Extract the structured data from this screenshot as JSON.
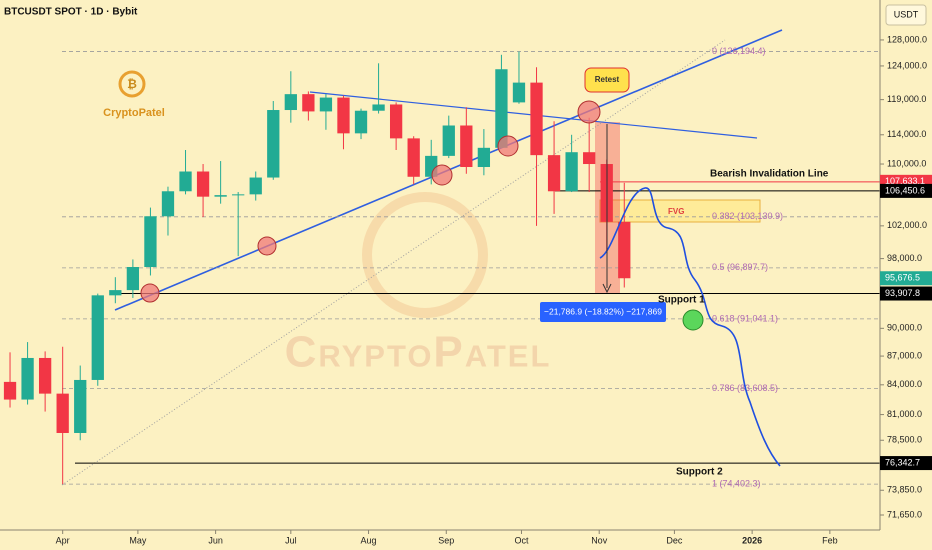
{
  "chart_data": {
    "type": "candlestick",
    "title": "BTCUSDT SPOT · 1D · Bybit",
    "currency": "USDT",
    "log_scale": true,
    "up_color": "#22ab94",
    "down_color": "#f23645",
    "xlim": [
      -25,
      326
    ],
    "xticks": [
      {
        "value": 0,
        "label": "Apr"
      },
      {
        "value": 30,
        "label": "May"
      },
      {
        "value": 61,
        "label": "Jun"
      },
      {
        "value": 91,
        "label": "Jul"
      },
      {
        "value": 122,
        "label": "Aug"
      },
      {
        "value": 153,
        "label": "Sep"
      },
      {
        "value": 183,
        "label": "Oct"
      },
      {
        "value": 214,
        "label": "Nov"
      },
      {
        "value": 244,
        "label": "Dec"
      },
      {
        "value": 275,
        "label": "2026"
      },
      {
        "value": 306,
        "label": "Feb"
      }
    ],
    "ylim": [
      70350,
      134400
    ],
    "yticks": [
      {
        "value": 128000,
        "label": "128,000.0"
      },
      {
        "value": 124000,
        "label": "124,000.0"
      },
      {
        "value": 119000,
        "label": "119,000.0"
      },
      {
        "value": 114000,
        "label": "114,000.0"
      },
      {
        "value": 110000,
        "label": "110,000.0"
      },
      {
        "value": 102000,
        "label": "102,000.0"
      },
      {
        "value": 98000,
        "label": "98,000.0"
      },
      {
        "value": 90000,
        "label": "90,000.0"
      },
      {
        "value": 87000,
        "label": "87,000.0"
      },
      {
        "value": 84000,
        "label": "84,000.0"
      },
      {
        "value": 81000,
        "label": "81,000.0"
      },
      {
        "value": 78500,
        "label": "78,500.0"
      },
      {
        "value": 73850,
        "label": "73,850.0"
      },
      {
        "value": 71650,
        "label": "71,650.0"
      }
    ],
    "x": [
      -21,
      -14,
      -7,
      0,
      7,
      14,
      21,
      28,
      35,
      42,
      49,
      56,
      63,
      70,
      77,
      84,
      91,
      98,
      105,
      112,
      119,
      126,
      133,
      140,
      147,
      154,
      161,
      168,
      175,
      182,
      189,
      196,
      203,
      210,
      217,
      224
    ],
    "open": [
      84300,
      82500,
      86800,
      83100,
      79200,
      84500,
      93700,
      94300,
      97000,
      103200,
      106400,
      109000,
      105700,
      105900,
      106000,
      108200,
      117500,
      119800,
      117300,
      119300,
      114200,
      117400,
      118300,
      113500,
      108300,
      111100,
      115300,
      109600,
      112200,
      118600,
      121500,
      111200,
      106400,
      111600,
      110000,
      102500
    ],
    "high": [
      87400,
      88500,
      87500,
      88000,
      86000,
      93900,
      95800,
      97900,
      104300,
      107000,
      111900,
      110000,
      110400,
      106300,
      109000,
      118800,
      123200,
      120200,
      119800,
      119600,
      117700,
      124400,
      118600,
      113800,
      113300,
      116700,
      117900,
      114800,
      125700,
      126200,
      123800,
      115900,
      114000,
      116400,
      110600,
      107500
    ],
    "low": [
      81700,
      82000,
      81300,
      74400,
      78500,
      83900,
      92800,
      93400,
      96000,
      100800,
      106000,
      103100,
      104800,
      98300,
      105200,
      107900,
      115700,
      116000,
      114700,
      112000,
      113400,
      117000,
      111900,
      107300,
      107300,
      110800,
      108700,
      108500,
      112100,
      118400,
      102000,
      103500,
      106300,
      106300,
      98900,
      94600
    ],
    "close": [
      82500,
      86800,
      83100,
      79200,
      84500,
      93700,
      94300,
      97000,
      103200,
      106400,
      109000,
      105700,
      105900,
      106000,
      108200,
      117500,
      119800,
      117300,
      119300,
      114200,
      117400,
      118300,
      113500,
      108300,
      111100,
      115300,
      109600,
      112200,
      123500,
      121500,
      111200,
      106400,
      111600,
      110000,
      102500,
      95676.5
    ],
    "fib_levels": [
      {
        "value": 126194.4,
        "label": "0 (126,194.4)"
      },
      {
        "value": 103130.9,
        "label": "0.382 (103,130.9)"
      },
      {
        "value": 96897.7,
        "label": "0.5 (96,897.7)"
      },
      {
        "value": 91041.1,
        "label": "0.618 (91,041.1)"
      },
      {
        "value": 83608.5,
        "label": "0.786 (83,608.5)"
      },
      {
        "value": 74402.3,
        "label": "1 (74,402.3)"
      }
    ],
    "price_levels": [
      {
        "value": 107633.1,
        "label": "107,633.1",
        "color": "#f23645"
      },
      {
        "value": 106450.6,
        "label": "106,450.6",
        "color": "#000000"
      },
      {
        "value": 95676.5,
        "label": "95,676.5",
        "color": "#22ab94"
      },
      {
        "value": 93907.8,
        "label": "93,907.8",
        "color": "#000000"
      },
      {
        "value": 76342.7,
        "label": "76,342.7",
        "color": "#000000"
      }
    ],
    "annotations": {
      "bearish_invalidation": "Bearish Invalidation Line",
      "support_1": "Support 1",
      "support_2": "Support 2",
      "fvg": "FVG",
      "retest": "Retest",
      "measure": "−21,786.9 (−18.82%) −217,869",
      "logo": "CryptoPatel",
      "watermark": "CryptoPatel"
    }
  }
}
